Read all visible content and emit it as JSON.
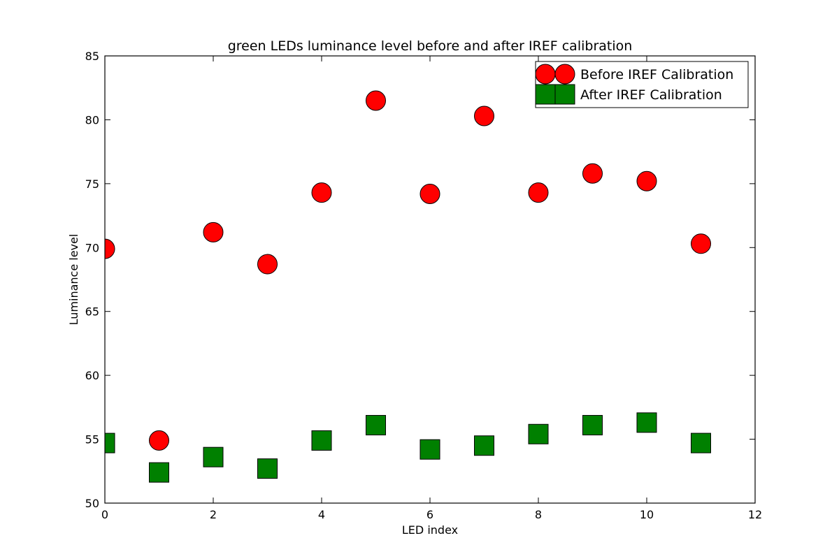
{
  "chart_data": {
    "type": "scatter",
    "title": "green LEDs luminance level before and after IREF calibration",
    "xlabel": "LED index",
    "ylabel": "Luminance level",
    "xlim": [
      0,
      12
    ],
    "ylim": [
      50,
      85
    ],
    "xticks": [
      0,
      2,
      4,
      6,
      8,
      10,
      12
    ],
    "yticks": [
      50,
      55,
      60,
      65,
      70,
      75,
      80,
      85
    ],
    "grid": false,
    "legend_position": "top-right",
    "series": [
      {
        "name": "Before IREF Calibration",
        "marker": "circle",
        "color": "#ff0000",
        "x": [
          0,
          1,
          2,
          3,
          4,
          5,
          6,
          7,
          8,
          9,
          10,
          11
        ],
        "y": [
          69.9,
          54.9,
          71.2,
          68.7,
          74.3,
          81.5,
          74.2,
          80.3,
          74.3,
          75.8,
          75.2,
          70.3
        ]
      },
      {
        "name": "After IREF Calibration",
        "marker": "square",
        "color": "#008000",
        "x": [
          0,
          1,
          2,
          3,
          4,
          5,
          6,
          7,
          8,
          9,
          10,
          11
        ],
        "y": [
          54.7,
          52.4,
          53.6,
          52.7,
          54.9,
          56.1,
          54.2,
          54.5,
          55.4,
          56.1,
          56.3,
          54.7
        ]
      }
    ]
  }
}
